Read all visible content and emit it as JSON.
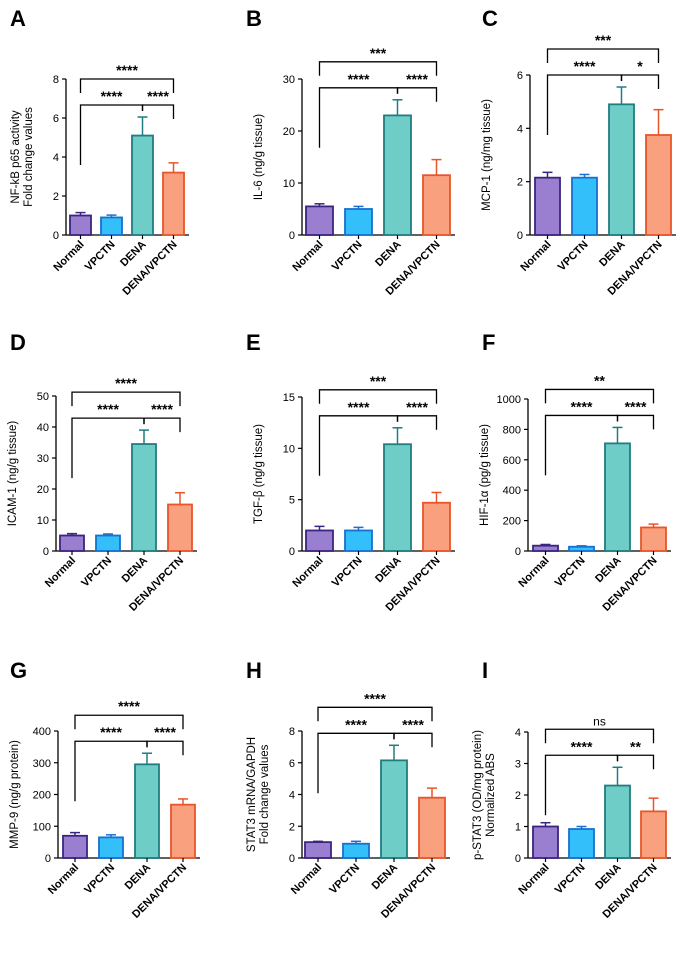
{
  "categories": [
    "Normal",
    "VPCTN",
    "DENA",
    "DENA/VPCTN"
  ],
  "colors": {
    "fills": [
      "#9A7FD1",
      "#33BFFA",
      "#6FCDC8",
      "#F9A17E"
    ],
    "strokes": [
      "#3B2580",
      "#1A6FD0",
      "#217C80",
      "#E8552A"
    ]
  },
  "chart_data": [
    {
      "type": "bar",
      "panel": "A",
      "ylabel": [
        "NF-kB p65 activity",
        "Fold change values"
      ],
      "ylim": [
        0,
        8
      ],
      "yticks": [
        "0",
        "2",
        "4",
        "6",
        "8"
      ],
      "categories": [
        "Normal",
        "VPCTN",
        "DENA",
        "DENA/VPCTN"
      ],
      "values": [
        1.0,
        0.9,
        5.1,
        3.2
      ],
      "errors": [
        0.15,
        0.12,
        0.95,
        0.5
      ],
      "comparisons": [
        {
          "from": 0,
          "to": 2,
          "label": "****"
        },
        {
          "from": 2,
          "to": 3,
          "label": "****"
        },
        {
          "from": 0,
          "to": 3,
          "label": "****"
        }
      ]
    },
    {
      "type": "bar",
      "panel": "B",
      "ylabel": [
        "IL-6 (ng/g tissue)"
      ],
      "ylim": [
        0,
        30
      ],
      "yticks": [
        "0",
        "10",
        "20",
        "30"
      ],
      "categories": [
        "Normal",
        "VPCTN",
        "DENA",
        "DENA/VPCTN"
      ],
      "values": [
        5.5,
        5.0,
        23.0,
        11.5
      ],
      "errors": [
        0.5,
        0.5,
        3.0,
        3.0
      ],
      "comparisons": [
        {
          "from": 0,
          "to": 2,
          "label": "****"
        },
        {
          "from": 2,
          "to": 3,
          "label": "****"
        },
        {
          "from": 0,
          "to": 3,
          "label": "***"
        }
      ]
    },
    {
      "type": "bar",
      "panel": "C",
      "ylabel": [
        "MCP-1 (ng/mg tissue)"
      ],
      "ylim": [
        0,
        6
      ],
      "yticks": [
        "0",
        "2",
        "4",
        "6"
      ],
      "categories": [
        "Normal",
        "VPCTN",
        "DENA",
        "DENA/VPCTN"
      ],
      "values": [
        2.15,
        2.15,
        4.9,
        3.75
      ],
      "errors": [
        0.2,
        0.12,
        0.65,
        0.95
      ],
      "comparisons": [
        {
          "from": 0,
          "to": 2,
          "label": "****"
        },
        {
          "from": 2,
          "to": 3,
          "label": "*"
        },
        {
          "from": 0,
          "to": 3,
          "label": "***"
        }
      ]
    },
    {
      "type": "bar",
      "panel": "D",
      "ylabel": [
        "ICAM-1 (ng/g tissue)"
      ],
      "ylim": [
        0,
        50
      ],
      "yticks": [
        "0",
        "10",
        "20",
        "30",
        "40",
        "50"
      ],
      "categories": [
        "Normal",
        "VPCTN",
        "DENA",
        "DENA/VPCTN"
      ],
      "values": [
        5.0,
        5.0,
        34.5,
        15.0
      ],
      "errors": [
        0.6,
        0.5,
        4.5,
        3.8
      ],
      "comparisons": [
        {
          "from": 0,
          "to": 2,
          "label": "****"
        },
        {
          "from": 2,
          "to": 3,
          "label": "****"
        },
        {
          "from": 0,
          "to": 3,
          "label": "****"
        }
      ]
    },
    {
      "type": "bar",
      "panel": "E",
      "ylabel": [
        "TGF-β (ng/g tissue)"
      ],
      "ylim": [
        0,
        15
      ],
      "yticks": [
        "0",
        "5",
        "10",
        "15"
      ],
      "categories": [
        "Normal",
        "VPCTN",
        "DENA",
        "DENA/VPCTN"
      ],
      "values": [
        2.0,
        2.0,
        10.4,
        4.7
      ],
      "errors": [
        0.4,
        0.3,
        1.6,
        1.0
      ],
      "comparisons": [
        {
          "from": 0,
          "to": 2,
          "label": "****"
        },
        {
          "from": 2,
          "to": 3,
          "label": "****"
        },
        {
          "from": 0,
          "to": 3,
          "label": "***"
        }
      ]
    },
    {
      "type": "bar",
      "panel": "F",
      "ylabel": [
        "HIF-1α (pg/g tissue)"
      ],
      "ylim": [
        0,
        1000
      ],
      "yticks": [
        "0",
        "200",
        "400",
        "600",
        "800",
        "1000"
      ],
      "categories": [
        "Normal",
        "VPCTN",
        "DENA",
        "DENA/VPCTN"
      ],
      "values": [
        35,
        28,
        708,
        155
      ],
      "errors": [
        8,
        6,
        105,
        22
      ],
      "comparisons": [
        {
          "from": 0,
          "to": 2,
          "label": "****"
        },
        {
          "from": 2,
          "to": 3,
          "label": "****"
        },
        {
          "from": 0,
          "to": 3,
          "label": "**"
        }
      ]
    },
    {
      "type": "bar",
      "panel": "G",
      "ylabel": [
        "MMP-9 (ng/g protein)"
      ],
      "ylim": [
        0,
        400
      ],
      "yticks": [
        "0",
        "100",
        "200",
        "300",
        "400"
      ],
      "categories": [
        "Normal",
        "VPCTN",
        "DENA",
        "DENA/VPCTN"
      ],
      "values": [
        70,
        65,
        295,
        168
      ],
      "errors": [
        10,
        8,
        35,
        18
      ],
      "comparisons": [
        {
          "from": 0,
          "to": 2,
          "label": "****"
        },
        {
          "from": 2,
          "to": 3,
          "label": "****"
        },
        {
          "from": 0,
          "to": 3,
          "label": "****"
        }
      ]
    },
    {
      "type": "bar",
      "panel": "H",
      "ylabel": [
        "STAT3 mRNA/GAPDH",
        "Fold change values"
      ],
      "ylim": [
        0,
        8
      ],
      "yticks": [
        "0",
        "2",
        "4",
        "6",
        "8"
      ],
      "categories": [
        "Normal",
        "VPCTN",
        "DENA",
        "DENA/VPCTN"
      ],
      "values": [
        1.0,
        0.9,
        6.15,
        3.8
      ],
      "errors": [
        0.05,
        0.15,
        0.95,
        0.6
      ],
      "comparisons": [
        {
          "from": 0,
          "to": 2,
          "label": "****"
        },
        {
          "from": 2,
          "to": 3,
          "label": "****"
        },
        {
          "from": 0,
          "to": 3,
          "label": "****"
        }
      ]
    },
    {
      "type": "bar",
      "panel": "I",
      "ylabel": [
        "p-STAT3 (OD/mg protein)",
        "Normalized ABS"
      ],
      "ylim": [
        0,
        4
      ],
      "yticks": [
        "0",
        "1",
        "2",
        "3",
        "4"
      ],
      "categories": [
        "Normal",
        "VPCTN",
        "DENA",
        "DENA/VPCTN"
      ],
      "values": [
        1.0,
        0.92,
        2.3,
        1.48
      ],
      "errors": [
        0.12,
        0.08,
        0.58,
        0.42
      ],
      "comparisons": [
        {
          "from": 0,
          "to": 2,
          "label": "****"
        },
        {
          "from": 2,
          "to": 3,
          "label": "**"
        },
        {
          "from": 0,
          "to": 3,
          "label": "ns"
        }
      ]
    }
  ]
}
